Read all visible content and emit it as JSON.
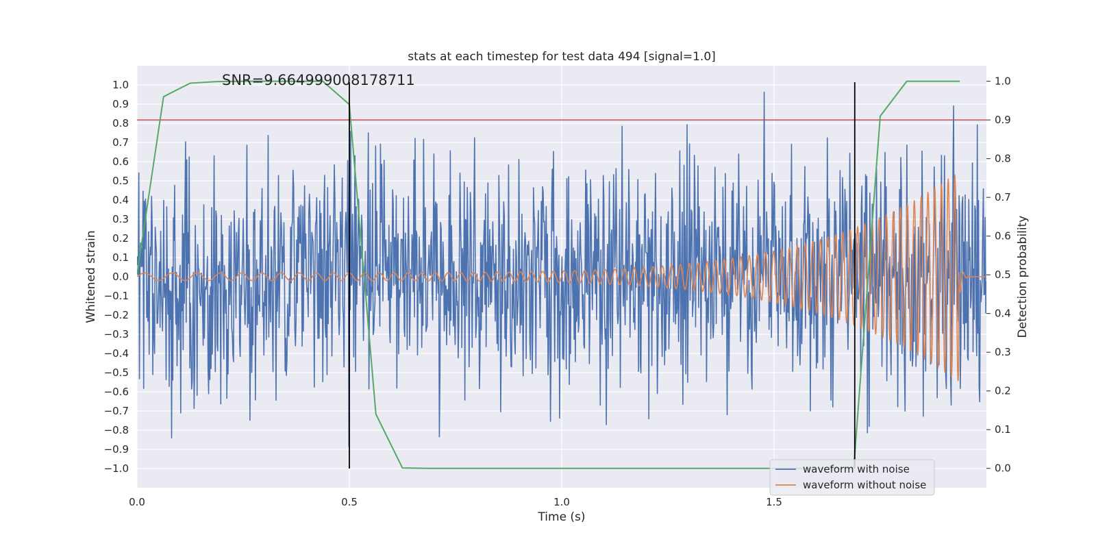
{
  "chart_data": {
    "type": "line",
    "title": "stats at each timestep for test data 494 [signal=1.0]",
    "xlabel": "Time (s)",
    "ylabel": "Whitened strain",
    "y2label": "Detection probability",
    "annotation": "SNR=9.664999008178711",
    "xlim": [
      0.0,
      2.0
    ],
    "ylim": [
      -1.1,
      1.1
    ],
    "y2lim": [
      -0.05,
      1.04
    ],
    "xticks": [
      0.0,
      0.5,
      1.0,
      1.5
    ],
    "xtick_labels": [
      "0.0",
      "0.5",
      "1.0",
      "1.5"
    ],
    "yticks": [
      1.0,
      0.9,
      0.8,
      0.7,
      0.6,
      0.5,
      0.4,
      0.3,
      0.2,
      0.1,
      0.0,
      -0.1,
      -0.2,
      -0.3,
      -0.4,
      -0.5,
      -0.6,
      -0.7,
      -0.8,
      -0.9,
      -1.0
    ],
    "ytick_labels": [
      "1.0",
      "0.9",
      "0.8",
      "0.7",
      "0.6",
      "0.5",
      "0.4",
      "0.3",
      "0.2",
      "0.1",
      "0.0",
      "−0.1",
      "−0.2",
      "−0.3",
      "−0.4",
      "−0.5",
      "−0.6",
      "−0.7",
      "−0.8",
      "−0.9",
      "−1.0"
    ],
    "y2ticks": [
      1.0,
      0.9,
      0.8,
      0.7,
      0.6,
      0.5,
      0.4,
      0.3,
      0.2,
      0.1,
      0.0
    ],
    "y2tick_labels": [
      "1.0",
      "0.9",
      "0.8",
      "0.7",
      "0.6",
      "0.5",
      "0.4",
      "0.3",
      "0.2",
      "0.1",
      "0.0"
    ],
    "threshold_y2": 0.9,
    "vlines_x": [
      0.5,
      1.69
    ],
    "vlines_ymin": -1.0,
    "vlines_ymax": 1.0,
    "noise": {
      "name": "waveform with noise",
      "duration": 2.0,
      "samples": 1400,
      "amplitude_std": 0.3,
      "peak": 0.99,
      "trough": -0.98
    },
    "signal": {
      "name": "waveform without noise",
      "t_start": 0.0,
      "t_merger": 1.935,
      "t_end": 2.0,
      "f0": 14,
      "f_merger": 70,
      "amp0": 0.02,
      "amp_peak": 0.55,
      "amp_trough": -0.47
    },
    "probability": {
      "name": "detection probability",
      "x": [
        0.0,
        0.0625,
        0.125,
        0.1875,
        0.25,
        0.3125,
        0.375,
        0.4375,
        0.5,
        0.5625,
        0.625,
        0.6875,
        0.75,
        0.8125,
        0.875,
        0.9375,
        1.0,
        1.0625,
        1.125,
        1.1875,
        1.25,
        1.3125,
        1.375,
        1.4375,
        1.5,
        1.5625,
        1.625,
        1.6875,
        1.75,
        1.8125,
        1.875,
        1.9375
      ],
      "y": [
        0.5,
        0.96,
        0.995,
        0.999,
        1.0,
        1.0,
        1.0,
        1.0,
        0.94,
        0.14,
        0.001,
        0.0,
        0.0,
        0.0,
        0.0,
        0.0,
        0.0,
        0.0,
        0.0,
        0.0,
        0.0,
        0.0,
        0.0,
        0.0,
        0.0,
        0.0,
        0.0,
        0.0,
        0.91,
        1.0,
        1.0,
        1.0
      ]
    },
    "legend": {
      "location": "lower-right",
      "entries": [
        "waveform with noise",
        "waveform without noise"
      ]
    },
    "colors": {
      "axes_background": "#eaeaf2",
      "grid": "#ffffff",
      "noise": "#4c72b0",
      "signal": "#dd8452",
      "probability": "#55a868",
      "threshold": "#c44e52",
      "vlines": "#000000",
      "text": "#262626"
    }
  }
}
